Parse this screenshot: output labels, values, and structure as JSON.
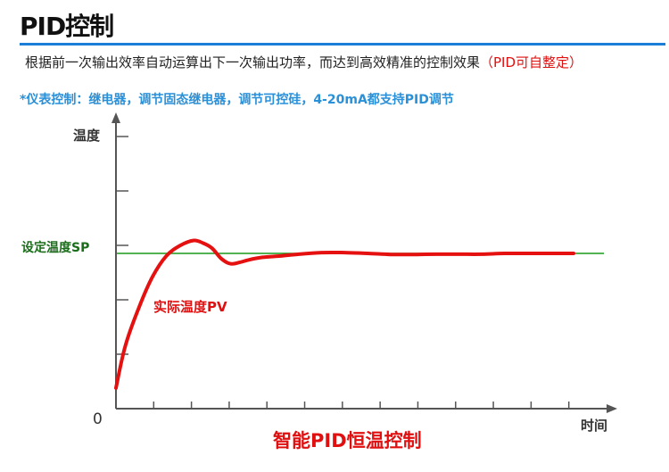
{
  "header": {
    "title": "PID控制",
    "description_main": "根据前一次输出效率自动运算出下一次输出功率，而达到高效精准的控制效果",
    "description_highlight": "（PID可自整定）",
    "note": "*仪表控制：继电器，调节固态继电器，调节可控硅，4-20mA都支持PID调节"
  },
  "colors": {
    "title_rule": "#1b7fd8",
    "setpoint": "#1a9a1a",
    "pv_curve": "#e51010",
    "axis": "#555555",
    "note": "#2a90d8"
  },
  "chart_data": {
    "type": "line",
    "title": "智能PID恒温控制",
    "xlabel": "时间",
    "ylabel": "温度",
    "origin_label": "0",
    "xlim": [
      0,
      1
    ],
    "ylim": [
      0,
      1
    ],
    "x_ticks": 12,
    "y_ticks": 5,
    "grid": false,
    "setpoint": {
      "name": "设定温度SP",
      "value": 0.6
    },
    "series": [
      {
        "name": "实际温度PV",
        "x": [
          0.0,
          0.02,
          0.05,
          0.08,
          0.11,
          0.14,
          0.17,
          0.19,
          0.21,
          0.23,
          0.25,
          0.27,
          0.29,
          0.32,
          0.36,
          0.4,
          0.45,
          0.5,
          0.55,
          0.6,
          0.65,
          0.7,
          0.75,
          0.8,
          0.85,
          0.9,
          0.95,
          1.0
        ],
        "y": [
          0.08,
          0.24,
          0.39,
          0.51,
          0.59,
          0.63,
          0.65,
          0.64,
          0.62,
          0.58,
          0.56,
          0.565,
          0.575,
          0.585,
          0.59,
          0.597,
          0.603,
          0.603,
          0.6,
          0.596,
          0.596,
          0.597,
          0.597,
          0.597,
          0.6,
          0.6,
          0.6,
          0.6
        ]
      }
    ]
  }
}
